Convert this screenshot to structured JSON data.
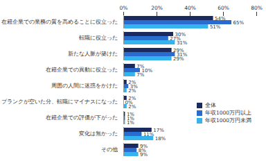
{
  "chart_data": {
    "type": "bar",
    "orientation": "horizontal",
    "categories": [
      "在籍企業での業務の質を高めることに役立った",
      "転職に役立った",
      "新たな人脈が築けた",
      "在籍企業での異動に役立った",
      "周囲の人間に迷惑をかけた",
      "ブランクが空いた分、転職にマイナスになった",
      "在籍企業での評価が下がった",
      "変化は無かった",
      "その他"
    ],
    "series": [
      {
        "name": "全体",
        "color": "#1b2a5e",
        "values": [
          54,
          30,
          29,
          7,
          2,
          2,
          1,
          17,
          9
        ],
        "value_labels": [
          "54%",
          "30%",
          "29%",
          "7%",
          "2%",
          "2%",
          "1%",
          "17%",
          "9%"
        ]
      },
      {
        "name": "年収1000万円以上",
        "color": "#2a6bd0",
        "values": [
          65,
          27,
          31,
          10,
          3,
          0,
          1,
          11,
          8
        ],
        "value_labels": [
          "65%",
          "27%",
          "31%",
          "10%",
          "3%",
          "0%",
          "1%",
          "11%",
          "8%"
        ]
      },
      {
        "name": "年収1000万円未満",
        "color": "#35b3ee",
        "values": [
          51,
          31,
          29,
          7,
          2,
          2,
          1,
          18,
          9
        ],
        "value_labels": [
          "51%",
          "31%",
          "29%",
          "7%",
          "2%",
          "2%",
          "1%",
          "18%",
          "9%"
        ]
      }
    ],
    "xlim": [
      0,
      80
    ],
    "xticks": [
      {
        "value": 0,
        "label": "0%"
      },
      {
        "value": 20,
        "label": "20%"
      },
      {
        "value": 40,
        "label": "40%"
      },
      {
        "value": 60,
        "label": "60%"
      },
      {
        "value": 80,
        "label": "80%"
      }
    ],
    "data_labels": true,
    "legend": "right",
    "grid": false
  }
}
